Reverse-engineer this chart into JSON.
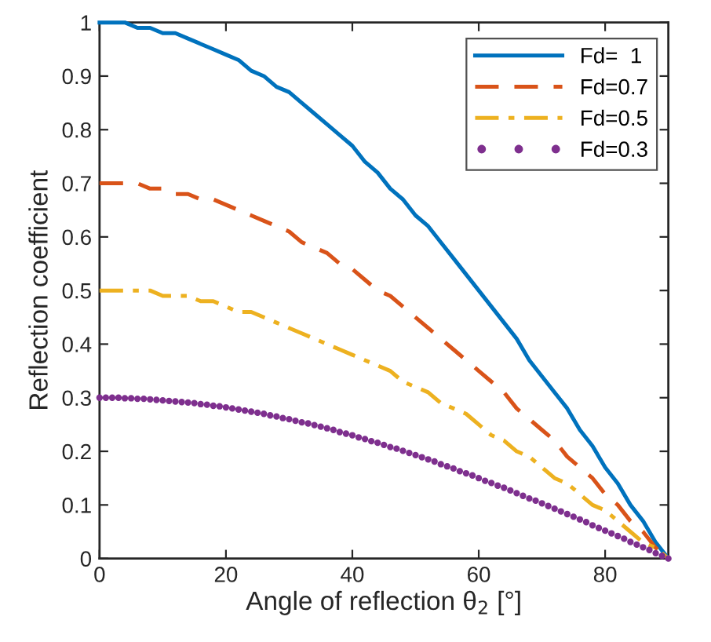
{
  "chart_data": {
    "type": "line",
    "xlabel": "Angle of reflection θ$_{2}$ [°]",
    "ylabel": "Reflection coefficient",
    "xlim": [
      0,
      90
    ],
    "ylim": [
      0,
      1
    ],
    "xticks": [
      0,
      20,
      40,
      60,
      80
    ],
    "yticks": [
      0,
      0.1,
      0.2,
      0.3,
      0.4,
      0.5,
      0.6,
      0.7,
      0.8,
      0.9,
      1
    ],
    "grid": false,
    "legend": "top right",
    "series": [
      {
        "name": "Fd=  1",
        "color": "#0072bd",
        "line_style": "solid",
        "marker": "none",
        "x": [
          0,
          2,
          4,
          6,
          8,
          10,
          12,
          14,
          16,
          18,
          20,
          22,
          24,
          26,
          28,
          30,
          32,
          34,
          36,
          38,
          40,
          42,
          44,
          46,
          48,
          50,
          52,
          54,
          56,
          58,
          60,
          62,
          64,
          66,
          68,
          70,
          72,
          74,
          76,
          78,
          80,
          82,
          84,
          86,
          88,
          90
        ],
        "values": [
          1,
          1,
          1,
          0.99,
          0.99,
          0.98,
          0.98,
          0.97,
          0.96,
          0.95,
          0.94,
          0.93,
          0.91,
          0.9,
          0.88,
          0.87,
          0.85,
          0.83,
          0.81,
          0.79,
          0.77,
          0.74,
          0.72,
          0.69,
          0.67,
          0.64,
          0.62,
          0.59,
          0.56,
          0.53,
          0.5,
          0.47,
          0.44,
          0.41,
          0.37,
          0.34,
          0.31,
          0.28,
          0.24,
          0.21,
          0.17,
          0.14,
          0.1,
          0.07,
          0.03,
          0
        ]
      },
      {
        "name": "Fd=0.7",
        "color": "#d95319",
        "line_style": "dashed",
        "marker": "none",
        "x": [
          0,
          2,
          4,
          6,
          8,
          10,
          12,
          14,
          16,
          18,
          20,
          22,
          24,
          26,
          28,
          30,
          32,
          34,
          36,
          38,
          40,
          42,
          44,
          46,
          48,
          50,
          52,
          54,
          56,
          58,
          60,
          62,
          64,
          66,
          68,
          70,
          72,
          74,
          76,
          78,
          80,
          82,
          84,
          86,
          88,
          90
        ],
        "values": [
          0.7,
          0.7,
          0.7,
          0.7,
          0.69,
          0.69,
          0.68,
          0.68,
          0.67,
          0.67,
          0.66,
          0.65,
          0.64,
          0.63,
          0.62,
          0.61,
          0.59,
          0.58,
          0.57,
          0.55,
          0.54,
          0.52,
          0.5,
          0.49,
          0.47,
          0.45,
          0.43,
          0.41,
          0.39,
          0.37,
          0.35,
          0.33,
          0.31,
          0.28,
          0.26,
          0.24,
          0.22,
          0.19,
          0.17,
          0.15,
          0.12,
          0.1,
          0.07,
          0.05,
          0.02,
          0
        ]
      },
      {
        "name": "Fd=0.5",
        "color": "#edb120",
        "line_style": "dashdot",
        "marker": "none",
        "x": [
          0,
          2,
          4,
          6,
          8,
          10,
          12,
          14,
          16,
          18,
          20,
          22,
          24,
          26,
          28,
          30,
          32,
          34,
          36,
          38,
          40,
          42,
          44,
          46,
          48,
          50,
          52,
          54,
          56,
          58,
          60,
          62,
          64,
          66,
          68,
          70,
          72,
          74,
          76,
          78,
          80,
          82,
          84,
          86,
          88,
          90
        ],
        "values": [
          0.5,
          0.5,
          0.5,
          0.5,
          0.5,
          0.49,
          0.49,
          0.49,
          0.48,
          0.48,
          0.47,
          0.46,
          0.46,
          0.45,
          0.44,
          0.43,
          0.42,
          0.41,
          0.4,
          0.39,
          0.38,
          0.37,
          0.36,
          0.35,
          0.33,
          0.32,
          0.31,
          0.29,
          0.28,
          0.27,
          0.25,
          0.23,
          0.22,
          0.2,
          0.19,
          0.17,
          0.15,
          0.14,
          0.12,
          0.1,
          0.09,
          0.07,
          0.05,
          0.03,
          0.02,
          0
        ]
      },
      {
        "name": "Fd=0.3",
        "type": "scatter",
        "color": "#7e2f8e",
        "marker": "circle",
        "line_style": "none",
        "x": [
          0,
          1,
          2,
          3,
          4,
          5,
          6,
          7,
          8,
          9,
          10,
          11,
          12,
          13,
          14,
          15,
          16,
          17,
          18,
          19,
          20,
          21,
          22,
          23,
          24,
          25,
          26,
          27,
          28,
          29,
          30,
          31,
          32,
          33,
          34,
          35,
          36,
          37,
          38,
          39,
          40,
          41,
          42,
          43,
          44,
          45,
          46,
          47,
          48,
          49,
          50,
          51,
          52,
          53,
          54,
          55,
          56,
          57,
          58,
          59,
          60,
          61,
          62,
          63,
          64,
          65,
          66,
          67,
          68,
          69,
          70,
          71,
          72,
          73,
          74,
          75,
          76,
          77,
          78,
          79,
          80,
          81,
          82,
          83,
          84,
          85,
          86,
          87,
          88,
          89,
          90
        ],
        "values": [
          0.3,
          0.3,
          0.3,
          0.3,
          0.299,
          0.299,
          0.298,
          0.298,
          0.297,
          0.296,
          0.295,
          0.294,
          0.293,
          0.292,
          0.291,
          0.29,
          0.288,
          0.287,
          0.285,
          0.284,
          0.282,
          0.28,
          0.278,
          0.276,
          0.274,
          0.272,
          0.27,
          0.267,
          0.265,
          0.262,
          0.26,
          0.257,
          0.254,
          0.252,
          0.249,
          0.246,
          0.243,
          0.24,
          0.236,
          0.233,
          0.23,
          0.226,
          0.223,
          0.219,
          0.216,
          0.212,
          0.208,
          0.205,
          0.201,
          0.197,
          0.193,
          0.189,
          0.185,
          0.181,
          0.176,
          0.172,
          0.168,
          0.163,
          0.159,
          0.155,
          0.15,
          0.145,
          0.141,
          0.136,
          0.132,
          0.127,
          0.122,
          0.117,
          0.112,
          0.108,
          0.103,
          0.098,
          0.093,
          0.088,
          0.083,
          0.078,
          0.073,
          0.068,
          0.062,
          0.057,
          0.052,
          0.047,
          0.042,
          0.037,
          0.031,
          0.026,
          0.021,
          0.016,
          0.01,
          0.005,
          0
        ]
      }
    ]
  }
}
